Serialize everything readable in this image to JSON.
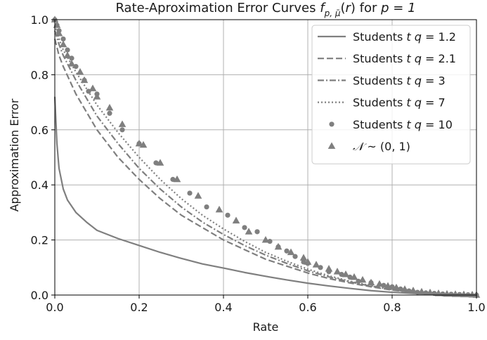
{
  "chart_data": {
    "type": "line",
    "title_prefix": "Rate-Aproximation Error Curves ",
    "title_math": "f_{p,\\bar{\\mu}}(r)",
    "title_suffix": " for ",
    "title_cond": "p = 1",
    "xlabel": "Rate",
    "ylabel": "Approximation Error",
    "xlim": [
      0.0,
      1.0
    ],
    "ylim": [
      0.0,
      1.0
    ],
    "xticks": [
      "0.0",
      "0.2",
      "0.4",
      "0.6",
      "0.8",
      "1.0"
    ],
    "yticks": [
      "0.0",
      "0.2",
      "0.4",
      "0.6",
      "0.8",
      "1.0"
    ],
    "grid": true,
    "legend_position": "top-right",
    "series_color": "#7f7f7f",
    "series": [
      {
        "name": "Students t q = 1.2",
        "label_prefix": "Students ",
        "label_var": "t",
        "label_mid": " q",
        "label_value": " = 1.2",
        "style": "solid",
        "x": [
          0.0,
          0.005,
          0.01,
          0.02,
          0.03,
          0.05,
          0.075,
          0.1,
          0.15,
          0.2,
          0.25,
          0.3,
          0.35,
          0.4,
          0.45,
          0.5,
          0.55,
          0.6,
          0.65,
          0.7,
          0.75,
          0.8,
          0.85,
          0.9,
          0.95,
          1.0
        ],
        "y": [
          0.72,
          0.55,
          0.46,
          0.385,
          0.345,
          0.3,
          0.265,
          0.235,
          0.205,
          0.18,
          0.155,
          0.133,
          0.113,
          0.098,
          0.082,
          0.068,
          0.055,
          0.043,
          0.033,
          0.024,
          0.016,
          0.01,
          0.006,
          0.003,
          0.001,
          0.0
        ]
      },
      {
        "name": "Students t q = 2.1",
        "label_prefix": "Students ",
        "label_var": "t",
        "label_mid": " q",
        "label_value": " = 2.1",
        "style": "dashed",
        "x": [
          0.0,
          0.01,
          0.02,
          0.05,
          0.1,
          0.15,
          0.2,
          0.25,
          0.3,
          0.35,
          0.4,
          0.45,
          0.5,
          0.55,
          0.6,
          0.65,
          0.7,
          0.75,
          0.8,
          0.85,
          0.9,
          0.95,
          1.0
        ],
        "y": [
          0.93,
          0.87,
          0.83,
          0.73,
          0.6,
          0.5,
          0.42,
          0.35,
          0.29,
          0.245,
          0.2,
          0.165,
          0.13,
          0.105,
          0.08,
          0.06,
          0.044,
          0.03,
          0.018,
          0.01,
          0.005,
          0.002,
          0.0
        ]
      },
      {
        "name": "Students t q = 3",
        "label_prefix": "Students ",
        "label_var": "t",
        "label_mid": " q",
        "label_value": " = 3",
        "style": "dashdot",
        "x": [
          0.0,
          0.01,
          0.02,
          0.05,
          0.1,
          0.15,
          0.2,
          0.25,
          0.3,
          0.35,
          0.4,
          0.45,
          0.5,
          0.55,
          0.6,
          0.65,
          0.7,
          0.75,
          0.8,
          0.85,
          0.9,
          0.95,
          1.0
        ],
        "y": [
          0.96,
          0.91,
          0.87,
          0.78,
          0.65,
          0.55,
          0.46,
          0.385,
          0.32,
          0.265,
          0.22,
          0.18,
          0.145,
          0.115,
          0.088,
          0.066,
          0.048,
          0.032,
          0.02,
          0.011,
          0.005,
          0.002,
          0.0
        ]
      },
      {
        "name": "Students t q = 7",
        "label_prefix": "Students ",
        "label_var": "t",
        "label_mid": " q",
        "label_value": " = 7",
        "style": "dotted",
        "x": [
          0.0,
          0.01,
          0.02,
          0.05,
          0.1,
          0.15,
          0.2,
          0.25,
          0.3,
          0.35,
          0.4,
          0.45,
          0.5,
          0.55,
          0.6,
          0.65,
          0.7,
          0.75,
          0.8,
          0.85,
          0.9,
          0.95,
          1.0
        ],
        "y": [
          0.98,
          0.93,
          0.89,
          0.81,
          0.69,
          0.59,
          0.5,
          0.42,
          0.35,
          0.29,
          0.24,
          0.195,
          0.155,
          0.123,
          0.094,
          0.07,
          0.05,
          0.034,
          0.021,
          0.012,
          0.006,
          0.002,
          0.0
        ]
      },
      {
        "name": "Students t q = 10",
        "label_prefix": "Students ",
        "label_var": "t",
        "label_mid": " q",
        "label_value": " = 10",
        "style": "circle",
        "x": [
          0.0,
          0.005,
          0.01,
          0.02,
          0.03,
          0.04,
          0.05,
          0.07,
          0.08,
          0.1,
          0.13,
          0.16,
          0.2,
          0.24,
          0.28,
          0.32,
          0.36,
          0.41,
          0.45,
          0.48,
          0.51,
          0.53,
          0.55,
          0.57,
          0.59,
          0.6,
          0.63,
          0.65,
          0.68,
          0.7,
          0.72,
          0.75,
          0.78,
          0.8,
          0.82,
          0.84,
          0.86,
          0.88,
          0.9,
          0.92,
          0.94,
          0.96,
          0.98,
          1.0
        ],
        "y": [
          1.0,
          0.98,
          0.96,
          0.93,
          0.89,
          0.86,
          0.83,
          0.78,
          0.74,
          0.73,
          0.66,
          0.6,
          0.55,
          0.48,
          0.42,
          0.37,
          0.32,
          0.29,
          0.245,
          0.23,
          0.195,
          0.175,
          0.16,
          0.14,
          0.12,
          0.115,
          0.1,
          0.085,
          0.075,
          0.065,
          0.05,
          0.045,
          0.035,
          0.03,
          0.022,
          0.015,
          0.01,
          0.008,
          0.006,
          0.004,
          0.003,
          0.002,
          0.001,
          0.0
        ]
      },
      {
        "name": "N ~ (0,1)",
        "label_script": "𝒩",
        "label_rest": " ~ (0, 1)",
        "style": "triangle",
        "x": [
          0.0,
          0.005,
          0.01,
          0.02,
          0.03,
          0.04,
          0.06,
          0.07,
          0.09,
          0.1,
          0.13,
          0.16,
          0.2,
          0.21,
          0.25,
          0.29,
          0.34,
          0.39,
          0.43,
          0.46,
          0.5,
          0.53,
          0.56,
          0.59,
          0.6,
          0.62,
          0.65,
          0.67,
          0.69,
          0.71,
          0.73,
          0.75,
          0.77,
          0.79,
          0.81,
          0.83,
          0.85,
          0.87,
          0.89,
          0.91,
          0.93,
          0.95,
          0.97,
          0.99,
          1.0
        ],
        "y": [
          1.0,
          0.98,
          0.95,
          0.91,
          0.87,
          0.84,
          0.81,
          0.78,
          0.75,
          0.72,
          0.68,
          0.62,
          0.55,
          0.545,
          0.48,
          0.42,
          0.36,
          0.31,
          0.27,
          0.23,
          0.2,
          0.175,
          0.155,
          0.135,
          0.12,
          0.11,
          0.095,
          0.085,
          0.075,
          0.065,
          0.055,
          0.045,
          0.04,
          0.033,
          0.027,
          0.021,
          0.016,
          0.012,
          0.009,
          0.006,
          0.004,
          0.003,
          0.002,
          0.001,
          0.0
        ]
      }
    ]
  }
}
